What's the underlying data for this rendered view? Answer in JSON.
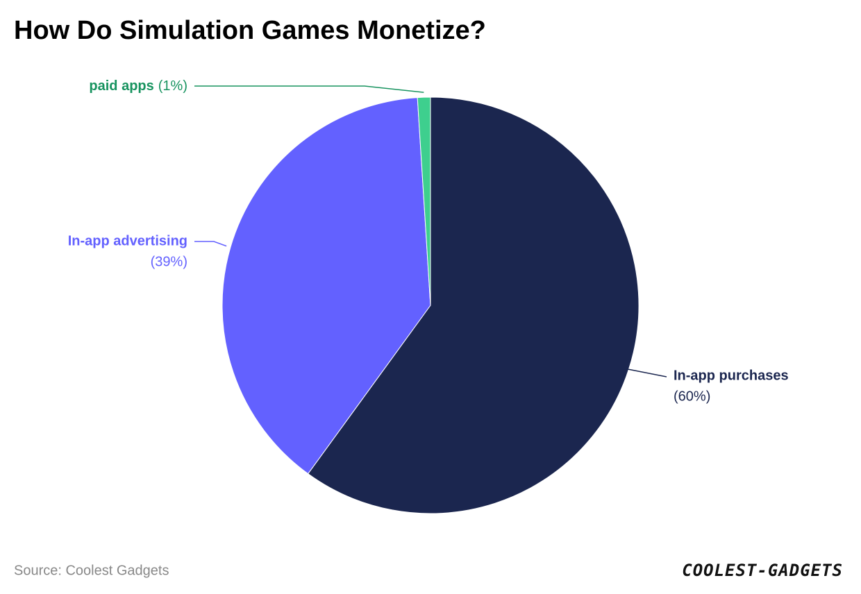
{
  "chart_data": {
    "type": "pie",
    "title": "How Do Simulation Games Monetize?",
    "categories": [
      "In-app purchases",
      "In-app advertising",
      "paid apps"
    ],
    "values": [
      60,
      39,
      1
    ],
    "value_labels": [
      "(60%)",
      "(39%)",
      "(1%)"
    ],
    "colors": [
      "#1b264f",
      "#6361ff",
      "#3ecf8e"
    ],
    "label_colors": [
      "#1b264f",
      "#6361ff",
      "#17935f"
    ],
    "source": "Source: Coolest Gadgets",
    "logo": "COOLEST-GADGETS"
  }
}
